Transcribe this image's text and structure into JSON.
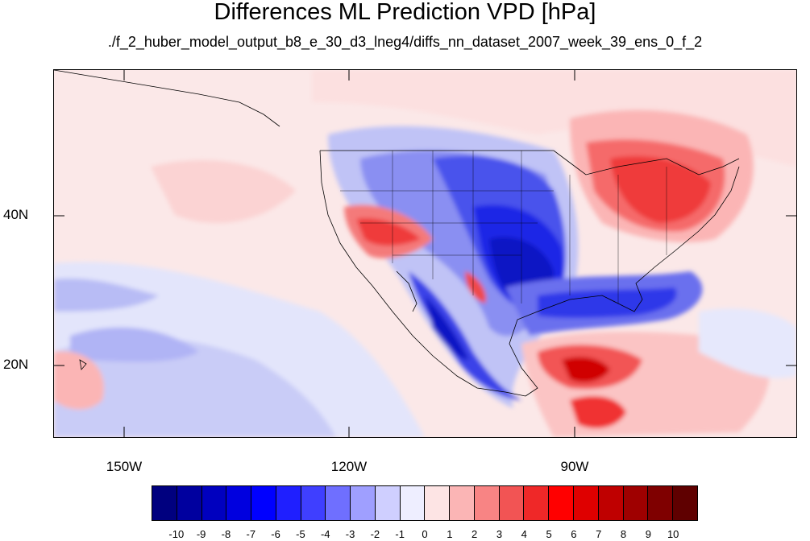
{
  "title": "Differences ML Prediction VPD [hPa]",
  "subtitle": "./f_2_huber_model_output_b8_e_30_d3_lneg4/diffs_nn_dataset_2007_week_39_ens_0_f_2",
  "lat_labels": [
    "40N",
    "20N"
  ],
  "lon_labels": [
    "150W",
    "120W",
    "90W"
  ],
  "colorbar": {
    "ticks": [
      "-10",
      "-9",
      "-8",
      "-7",
      "-6",
      "-5",
      "-4",
      "-3",
      "-2",
      "-1",
      "0",
      "1",
      "2",
      "3",
      "4",
      "5",
      "6",
      "7",
      "8",
      "9",
      "10"
    ],
    "colors": [
      "#00007f",
      "#00009f",
      "#0000bf",
      "#0000df",
      "#0000ff",
      "#1f1fff",
      "#3f3fff",
      "#6f6fff",
      "#9f9fff",
      "#cfcfff",
      "#eeeeff",
      "#fde4e4",
      "#fbb5b5",
      "#f88484",
      "#f25454",
      "#ef2828",
      "#ff0000",
      "#df0000",
      "#bf0000",
      "#9f0000",
      "#7f0000",
      "#5f0000"
    ]
  }
}
